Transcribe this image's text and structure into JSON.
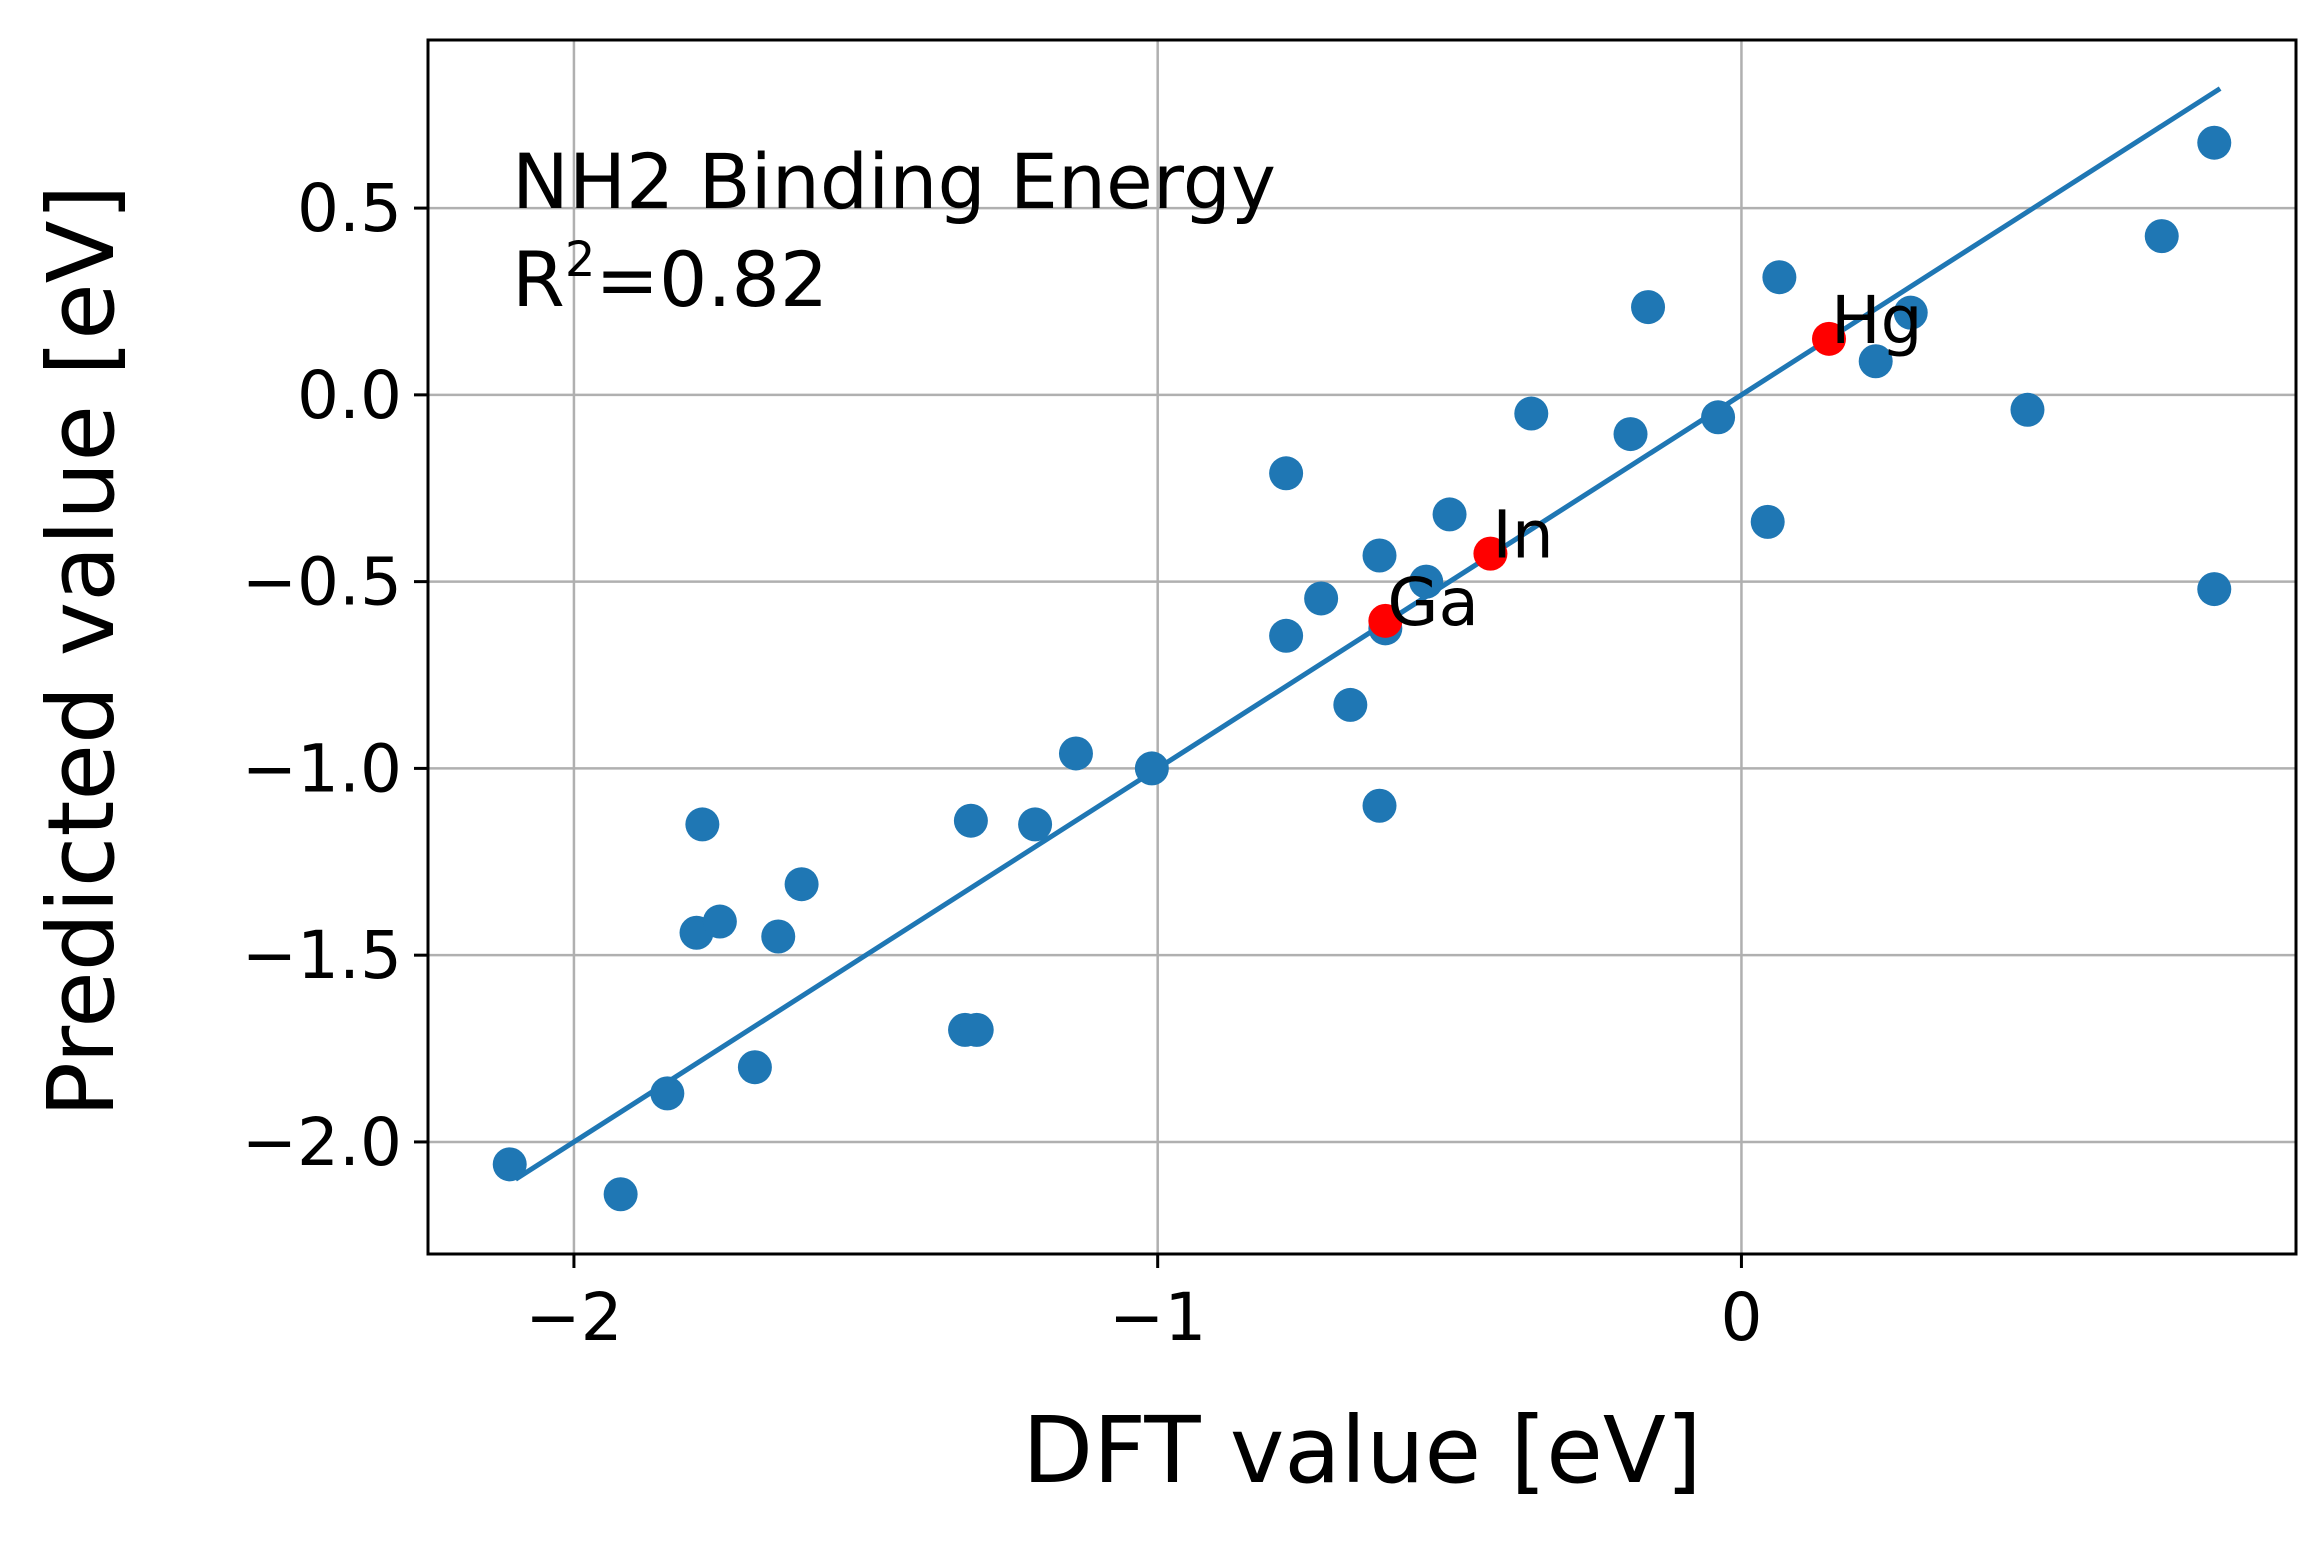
{
  "chart_data": {
    "type": "scatter",
    "xlabel": "DFT value [eV]",
    "ylabel": "Predicted value [eV]",
    "annotation": {
      "line1": "NH2 Binding Energy",
      "r2_prefix": "R",
      "r2_sup": "2",
      "r2_value": "=0.82"
    },
    "xlim": [
      -2.25,
      0.95
    ],
    "ylim": [
      -2.3,
      0.95
    ],
    "x_ticks": [
      {
        "value": -2,
        "label": "−2"
      },
      {
        "value": -1,
        "label": "−1"
      },
      {
        "value": 0,
        "label": "0"
      }
    ],
    "y_ticks": [
      {
        "value": 0.5,
        "label": "0.5"
      },
      {
        "value": 0.0,
        "label": "0.0"
      },
      {
        "value": -0.5,
        "label": "−0.5"
      },
      {
        "value": -1.0,
        "label": "−1.0"
      },
      {
        "value": -1.5,
        "label": "−1.5"
      },
      {
        "value": -2.0,
        "label": "−2.0"
      }
    ],
    "grid": true,
    "colors": {
      "points": "#1f77b4",
      "highlight": "#ff0000",
      "fit_line": "#1f77b4",
      "grid": "#b0b0b0"
    },
    "fit_line": {
      "x": [
        -2.1,
        0.82
      ],
      "y": [
        -2.1,
        0.82
      ]
    },
    "points": [
      {
        "x": -2.11,
        "y": -2.06
      },
      {
        "x": -1.92,
        "y": -2.14
      },
      {
        "x": -1.84,
        "y": -1.87
      },
      {
        "x": -1.78,
        "y": -1.15
      },
      {
        "x": -1.79,
        "y": -1.44
      },
      {
        "x": -1.75,
        "y": -1.41
      },
      {
        "x": -1.65,
        "y": -1.45
      },
      {
        "x": -1.61,
        "y": -1.31
      },
      {
        "x": -1.69,
        "y": -1.8
      },
      {
        "x": -1.32,
        "y": -1.14
      },
      {
        "x": -1.33,
        "y": -1.7
      },
      {
        "x": -1.31,
        "y": -1.7
      },
      {
        "x": -1.21,
        "y": -1.15
      },
      {
        "x": -1.14,
        "y": -0.96
      },
      {
        "x": -1.01,
        "y": -1.0
      },
      {
        "x": -0.78,
        "y": -0.21
      },
      {
        "x": -0.78,
        "y": -0.645
      },
      {
        "x": -0.72,
        "y": -0.545
      },
      {
        "x": -0.67,
        "y": -0.83
      },
      {
        "x": -0.62,
        "y": -0.43
      },
      {
        "x": -0.62,
        "y": -1.1
      },
      {
        "x": -0.61,
        "y": -0.625
      },
      {
        "x": -0.54,
        "y": -0.5
      },
      {
        "x": -0.5,
        "y": -0.32
      },
      {
        "x": -0.36,
        "y": -0.05
      },
      {
        "x": -0.19,
        "y": -0.105
      },
      {
        "x": -0.16,
        "y": 0.235
      },
      {
        "x": -0.04,
        "y": -0.06
      },
      {
        "x": 0.045,
        "y": -0.34
      },
      {
        "x": 0.065,
        "y": 0.315
      },
      {
        "x": 0.23,
        "y": 0.09
      },
      {
        "x": 0.29,
        "y": 0.22
      },
      {
        "x": 0.49,
        "y": -0.04
      },
      {
        "x": 0.72,
        "y": 0.425
      },
      {
        "x": 0.81,
        "y": 0.675
      },
      {
        "x": 0.81,
        "y": -0.52
      }
    ],
    "highlighted_points": [
      {
        "label": "Hg",
        "x": 0.15,
        "y": 0.15
      },
      {
        "label": "In",
        "x": -0.43,
        "y": -0.425
      },
      {
        "label": "Ga",
        "x": -0.61,
        "y": -0.605
      }
    ]
  }
}
